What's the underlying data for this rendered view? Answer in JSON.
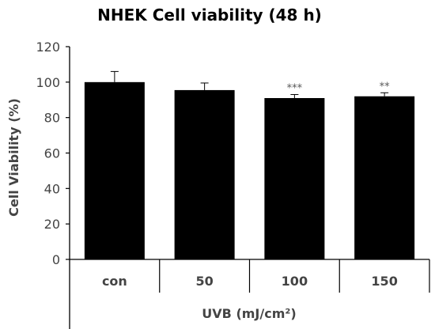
{
  "chart_data": {
    "type": "bar",
    "title": "NHEK Cell viability (48 h)",
    "xlabel": "UVB (mJ/cm²)",
    "ylabel": "Cell Viability (%)",
    "categories": [
      "con",
      "50",
      "100",
      "150"
    ],
    "values": [
      100,
      95.5,
      91,
      92
    ],
    "error": [
      6,
      4,
      2,
      2
    ],
    "annotations": [
      "",
      "",
      "***",
      "**"
    ],
    "ylim": [
      0,
      120
    ],
    "yticks": [
      0,
      20,
      40,
      60,
      80,
      100,
      120
    ],
    "grid": false,
    "bar_color": "#000000"
  }
}
